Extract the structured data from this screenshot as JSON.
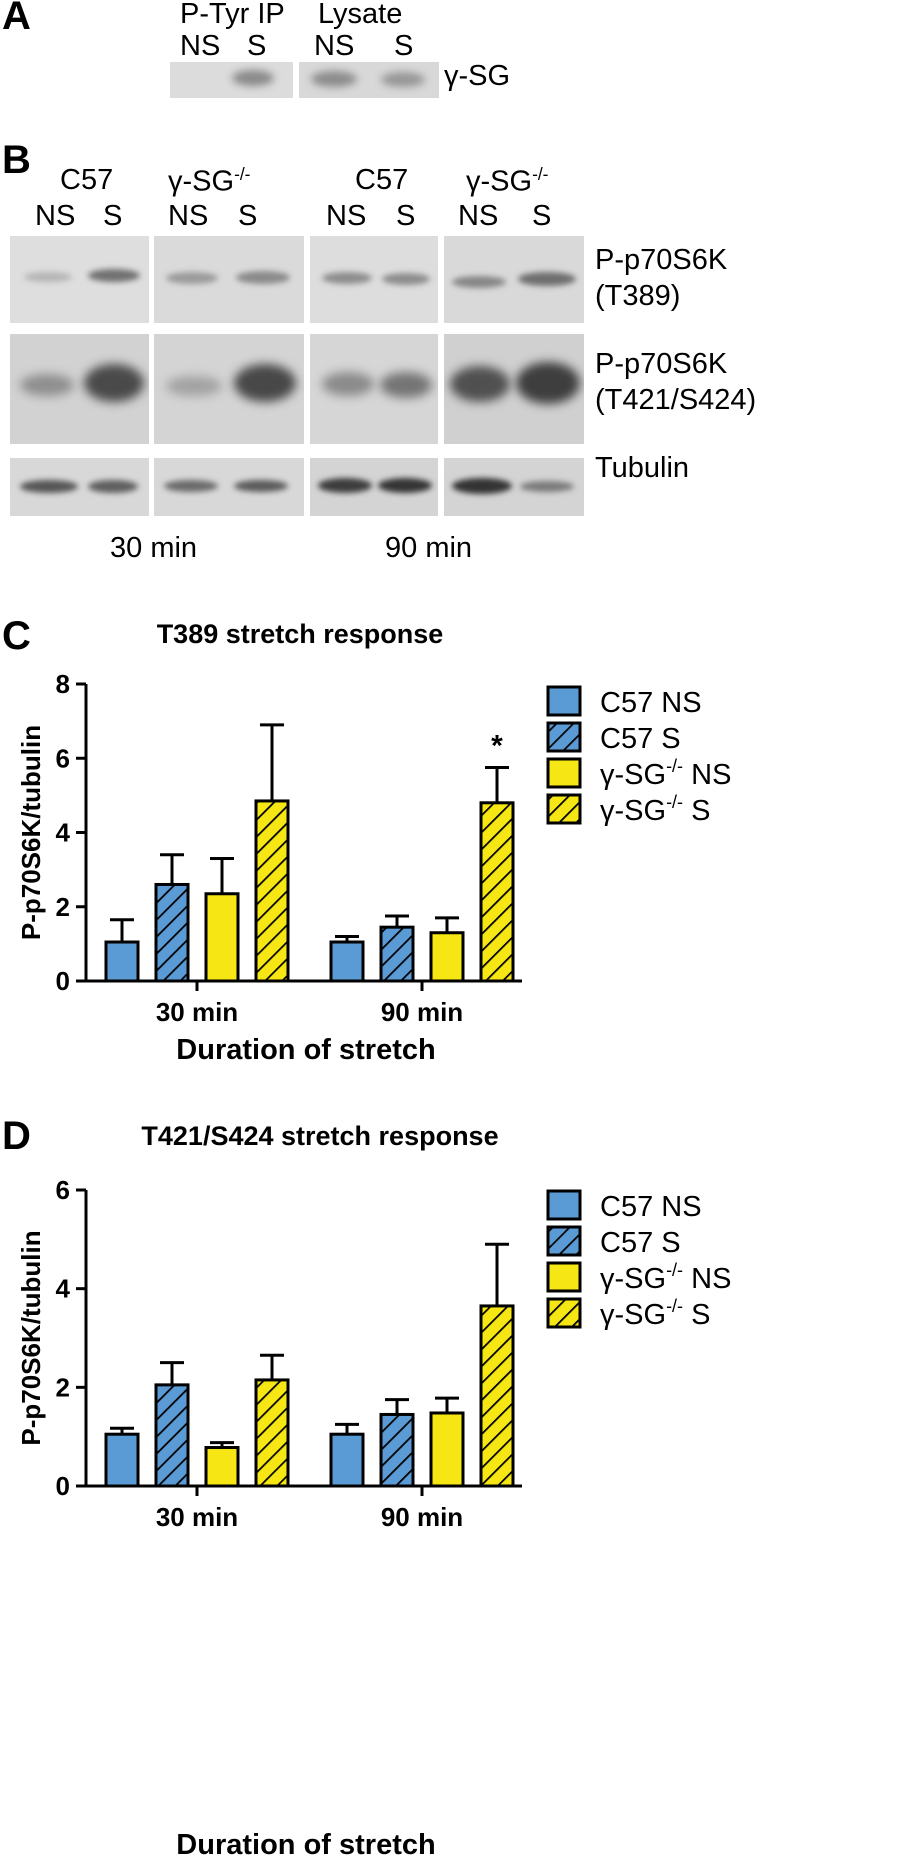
{
  "panels": {
    "a": "A",
    "b": "B",
    "c": "C",
    "d": "D"
  },
  "panel_a": {
    "group_1": "P-Tyr IP",
    "group_2": "Lysate",
    "lanes": [
      "NS",
      "S",
      "NS",
      "S"
    ],
    "row_label": "γ-SG"
  },
  "panel_b": {
    "strains": [
      "C57",
      "γ-SG",
      "C57",
      "γ-SG"
    ],
    "strain_sup": "-/-",
    "lanes": [
      "NS",
      "S",
      "NS",
      "S",
      "NS",
      "S",
      "NS",
      "S"
    ],
    "rows": [
      {
        "line1": "P-p70S6K",
        "line2": "(T389)"
      },
      {
        "line1": "P-p70S6K",
        "line2": "(T421/S424)"
      },
      {
        "line1": "Tubulin",
        "line2": ""
      }
    ],
    "times": [
      "30 min",
      "90 min"
    ]
  },
  "legend_sup": "-/-",
  "chart_data": [
    {
      "type": "bar",
      "title": "T389 stretch response",
      "xlabel": "Duration of stretch",
      "ylabel": "P-p70S6K/tubulin",
      "ylim": [
        0,
        8
      ],
      "yticks": [
        0,
        2,
        4,
        6,
        8
      ],
      "categories": [
        "30 min",
        "90 min"
      ],
      "series": [
        {
          "name": "C57 NS",
          "sup": "",
          "values": [
            1.05,
            1.05
          ],
          "errors": [
            0.6,
            0.15
          ],
          "color": "#5b9bd5",
          "hatch": false
        },
        {
          "name": "C57 S",
          "sup": "",
          "values": [
            2.6,
            1.45
          ],
          "errors": [
            0.8,
            0.3
          ],
          "color": "#5b9bd5",
          "hatch": true
        },
        {
          "name": "γ-SG",
          "suffix": " NS",
          "sup": "-/-",
          "values": [
            2.35,
            1.3
          ],
          "errors": [
            0.95,
            0.4
          ],
          "color": "#f5e614",
          "hatch": false
        },
        {
          "name": "γ-SG",
          "suffix": " S",
          "sup": "-/-",
          "values": [
            4.85,
            4.8
          ],
          "errors": [
            2.05,
            0.95
          ],
          "color": "#f5e614",
          "hatch": true
        }
      ],
      "annotations": [
        {
          "text": "*",
          "category": 1,
          "series": 3
        }
      ]
    },
    {
      "type": "bar",
      "title": "T421/S424 stretch response",
      "xlabel": "Duration of stretch",
      "ylabel": "P-p70S6K/tubulin",
      "ylim": [
        0,
        6
      ],
      "yticks": [
        0,
        2,
        4,
        6
      ],
      "categories": [
        "30 min",
        "90 min"
      ],
      "series": [
        {
          "name": "C57 NS",
          "sup": "",
          "values": [
            1.05,
            1.05
          ],
          "errors": [
            0.12,
            0.2
          ],
          "color": "#5b9bd5",
          "hatch": false
        },
        {
          "name": "C57 S",
          "sup": "",
          "values": [
            2.05,
            1.45
          ],
          "errors": [
            0.45,
            0.3
          ],
          "color": "#5b9bd5",
          "hatch": true
        },
        {
          "name": "γ-SG",
          "suffix": " NS",
          "sup": "-/-",
          "values": [
            0.78,
            1.48
          ],
          "errors": [
            0.1,
            0.3
          ],
          "color": "#f5e614",
          "hatch": false
        },
        {
          "name": "γ-SG",
          "suffix": " S",
          "sup": "-/-",
          "values": [
            2.15,
            3.65
          ],
          "errors": [
            0.5,
            1.25
          ],
          "color": "#f5e614",
          "hatch": true
        }
      ],
      "annotations": []
    }
  ]
}
